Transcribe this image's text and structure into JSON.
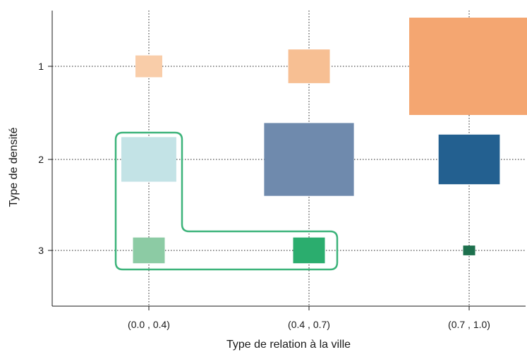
{
  "chart_data": {
    "type": "scatter",
    "marker": "rectangle-size-encoded",
    "xlabel": "Type de relation à la ville",
    "ylabel": "Type de densité",
    "x_categories": [
      "(0.0 , 0.4)",
      "(0.4 , 0.7)",
      "(0.7 , 1.0)"
    ],
    "y_categories": [
      "1",
      "2",
      "3"
    ],
    "grid": "dotted, at category positions",
    "points": [
      {
        "x": "(0.0 , 0.4)",
        "y": "1",
        "size": 0.05,
        "color": "#f9cda9"
      },
      {
        "x": "(0.4 , 0.7)",
        "y": "1",
        "size": 0.12,
        "color": "#f7bf93"
      },
      {
        "x": "(0.7 , 1.0)",
        "y": "1",
        "size": 1.0,
        "color": "#f4a671"
      },
      {
        "x": "(0.0 , 0.4)",
        "y": "2",
        "size": 0.21,
        "color": "#c3e3e6"
      },
      {
        "x": "(0.4 , 0.7)",
        "y": "2",
        "size": 0.56,
        "color": "#6f8aad"
      },
      {
        "x": "(0.7 , 1.0)",
        "y": "2",
        "size": 0.26,
        "color": "#236090"
      },
      {
        "x": "(0.0 , 0.4)",
        "y": "3",
        "size": 0.07,
        "color": "#8ccba4"
      },
      {
        "x": "(0.4 , 0.7)",
        "y": "3",
        "size": 0.07,
        "color": "#2bad6e"
      },
      {
        "x": "(0.7 , 1.0)",
        "y": "3",
        "size": 0.01,
        "color": "#1d704d"
      }
    ],
    "highlight": {
      "cells": [
        [
          "(0.0 , 0.4)",
          "2"
        ],
        [
          "(0.0 , 0.4)",
          "3"
        ],
        [
          "(0.4 , 0.7)",
          "3"
        ]
      ],
      "color": "#3cb37a",
      "shape": "L-shaped rounded outline"
    }
  }
}
